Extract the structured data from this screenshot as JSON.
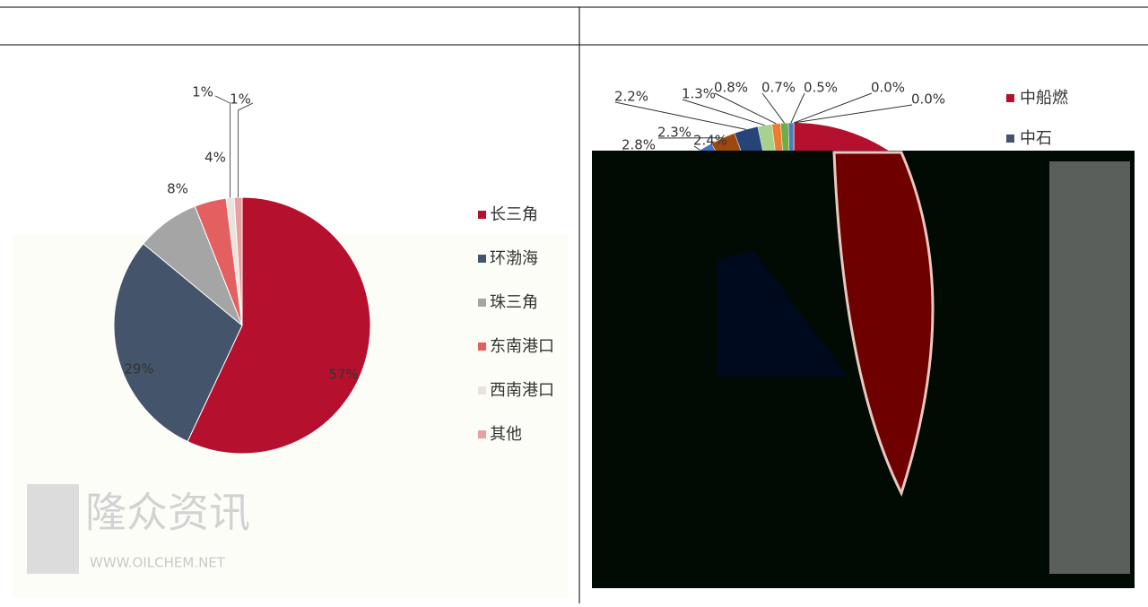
{
  "chart_data": [
    {
      "type": "pie",
      "categories": [
        "长三角",
        "环渤海",
        "珠三角",
        "东南港口",
        "西南港口",
        "其他"
      ],
      "values": [
        57,
        29,
        8,
        4,
        1,
        1
      ],
      "value_labels": [
        "57%",
        "29%",
        "8%",
        "4%",
        "1%",
        "1%"
      ],
      "colors": [
        "#b5112e",
        "#44546a",
        "#a5a5a5",
        "#e46060",
        "#e8e3dc",
        "#e8a0a0"
      ],
      "watermark": "隆众资讯",
      "watermark_url": "WWW.OILCHEM.NET"
    },
    {
      "type": "pie",
      "values": [
        0.0,
        0.0,
        0.5,
        0.7,
        0.8,
        1.3,
        2.2,
        2.3,
        2.4,
        2.8
      ],
      "value_labels": [
        "0.0%",
        "0.0%",
        "0.5%",
        "0.7%",
        "0.8%",
        "1.3%",
        "2.2%",
        "2.3%",
        "2.4%",
        "2.8%"
      ],
      "colors": [
        "#7f7f7f",
        "#5b9bd5",
        "#4a7ebb",
        "#70ad47",
        "#ed7d31",
        "#a9d18e",
        "#264478",
        "#9e480e",
        "#4472c4",
        "#636363"
      ],
      "legend": [
        "中船燃",
        "中石"
      ],
      "legend_colors": [
        "#b5112e",
        "#44546a"
      ]
    }
  ]
}
